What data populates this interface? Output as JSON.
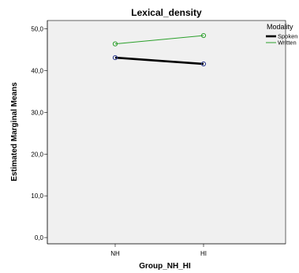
{
  "chart_data": {
    "type": "line",
    "title": "Lexical_density",
    "xlabel": "Group_NH_HI",
    "ylabel": "Estimated Marginal Means",
    "categories": [
      "NH",
      "HI"
    ],
    "ylim": [
      -1.5,
      52
    ],
    "yticks": [
      "0,0",
      "10,0",
      "20,0",
      "30,0",
      "40,0",
      "50,0"
    ],
    "grid": false,
    "legend": {
      "title": "Modality",
      "placement": "top-right"
    },
    "series": [
      {
        "name": "Spoken",
        "values": [
          43.1,
          41.6
        ],
        "color": "#000000",
        "marker_color": "#2b3990"
      },
      {
        "name": "Written",
        "values": [
          46.4,
          48.4
        ],
        "color": "#2ca02c",
        "marker_color": "#2ca02c"
      }
    ]
  }
}
